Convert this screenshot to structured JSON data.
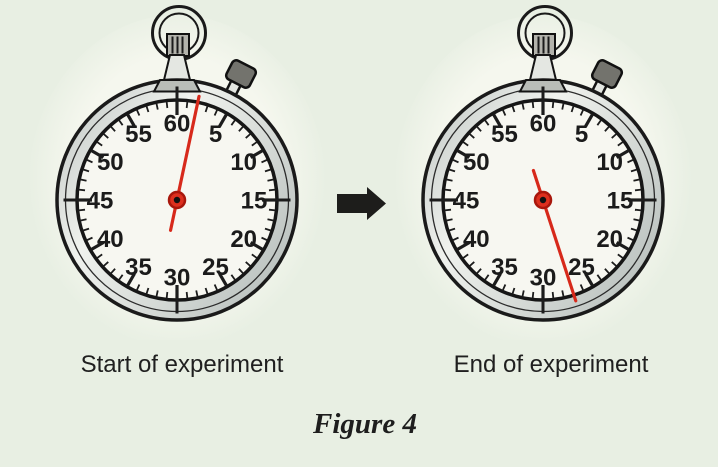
{
  "figure": {
    "caption": "Figure 4"
  },
  "colors": {
    "background": "#e8efe3",
    "halo": "#f5f7ee",
    "case_outline": "#1a1a1a",
    "rim_light": "#f0f2ee",
    "rim_dark": "#bcc3c0",
    "face": "#f7f7f1",
    "tick": "#1c1c1c",
    "number": "#1b1b1b",
    "hand": "#d7291b",
    "hub": "#dd2f1e",
    "hub_ring": "#a8170c",
    "metal_light": "#e4e7e2",
    "metal_mid": "#b3b3ac",
    "metal_dark": "#73736d",
    "arrow": "#1d1d1b",
    "label_text": "#1f1f1f"
  },
  "dial": {
    "numbers": [
      5,
      10,
      15,
      20,
      25,
      30,
      35,
      40,
      45,
      50,
      55,
      60
    ],
    "seconds_per_revolution": 60,
    "minor_tick_count": 60,
    "cross_tick_seconds": [
      0,
      15,
      30,
      45
    ]
  },
  "stopwatches": [
    {
      "id": "start",
      "label": "Start of experiment",
      "hand_seconds": 2
    },
    {
      "id": "end",
      "label": "End of experiment",
      "hand_seconds": 27
    }
  ]
}
